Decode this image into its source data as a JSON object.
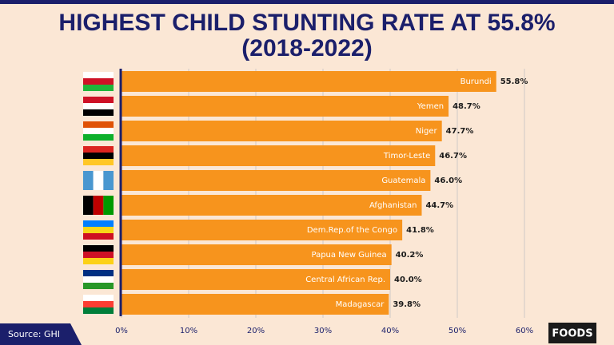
{
  "chart_data": {
    "type": "bar",
    "orientation": "horizontal",
    "title": "HIGHEST CHILD STUNTING RATE AT 55.8%",
    "subtitle": "(2018-2022)",
    "categories": [
      "Burundi",
      "Yemen",
      "Niger",
      "Timor-Leste",
      "Guatemala",
      "Afghanistan",
      "Dem.Rep.of the Congo",
      "Papua New Guinea",
      "Central African Rep.",
      "Madagascar"
    ],
    "values": [
      55.8,
      48.7,
      47.7,
      46.7,
      46.0,
      44.7,
      41.8,
      40.2,
      40.0,
      39.8
    ],
    "value_labels": [
      "55.8%",
      "48.7%",
      "47.7%",
      "46.7%",
      "46.0%",
      "44.7%",
      "41.8%",
      "40.2%",
      "40.0%",
      "39.8%"
    ],
    "color": "#f7941d",
    "xlim": [
      0,
      60
    ],
    "xticks": [
      {
        "value": 0,
        "label": "0%"
      },
      {
        "value": 10,
        "label": "10%"
      },
      {
        "value": 20,
        "label": "20%"
      },
      {
        "value": 30,
        "label": "30%"
      },
      {
        "value": 40,
        "label": "40%"
      },
      {
        "value": 50,
        "label": "50%"
      },
      {
        "value": 60,
        "label": "60%"
      }
    ],
    "grid": true,
    "source": "Source: GHI",
    "brand": "FOODS"
  }
}
